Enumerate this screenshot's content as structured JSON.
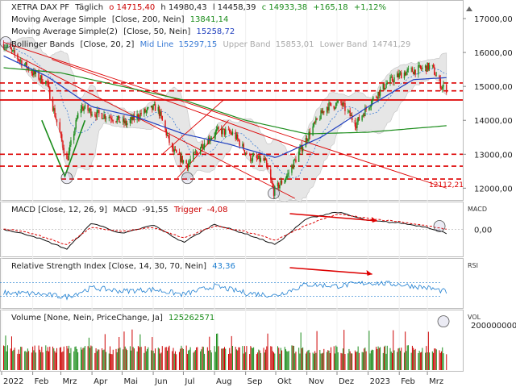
{
  "chart_data": {
    "type": "line",
    "main_panel": {
      "legend": [
        {
          "name": "XETRA DAX PF",
          "extra": "Täglich",
          "o": "o 14715,40",
          "h": "h 14980,43",
          "l": "l 14458,39",
          "c": "c 14933,38",
          "chg": "+165,18",
          "pct": "+1,12%"
        },
        {
          "name": "Moving Average Simple",
          "params": "[Close, 200, Nein]",
          "value": "13841,14",
          "color": "#1a8c1a"
        },
        {
          "name": "Moving Average Simple(2)",
          "params": "[Close, 50, Nein]",
          "value": "15258,72",
          "color": "#1f3fbf"
        },
        {
          "name": "Bollinger Bands",
          "params": "[Close, 20, 2]",
          "mid_label": "Mid Line",
          "mid": "15297,15",
          "upper_label": "Upper Band",
          "upper": "15853,01",
          "lower_label": "Lower Band",
          "lower": "14741,29"
        }
      ],
      "y_ticks": [
        "17000,00",
        "16000,00",
        "15000,00",
        "14000,00",
        "13000,00",
        "12000,00"
      ],
      "y_tick_values": [
        17000,
        16000,
        15000,
        14000,
        13000,
        12000
      ],
      "ylim": [
        11700,
        17500
      ],
      "support_label": "12112,21",
      "resistance_levels": [
        15100,
        14870,
        13000,
        12650
      ],
      "level_line": 14600,
      "support_level": 12270
    },
    "x_ticks": [
      "2022",
      "Feb",
      "Mrz",
      "Apr",
      "Mai",
      "Jun",
      "Jul",
      "Aug",
      "Sep",
      "Okt",
      "Nov",
      "Dez",
      "2023",
      "Feb",
      "Mrz"
    ],
    "price_series": {
      "name": "Close",
      "x": [
        "2022-01-03",
        "2022-01-15",
        "2022-02-01",
        "2022-02-15",
        "2022-03-07",
        "2022-03-20",
        "2022-04-05",
        "2022-04-20",
        "2022-05-05",
        "2022-05-20",
        "2022-06-05",
        "2022-06-20",
        "2022-07-05",
        "2022-07-20",
        "2022-08-05",
        "2022-08-20",
        "2022-09-05",
        "2022-09-20",
        "2022-09-29",
        "2022-10-13",
        "2022-10-25",
        "2022-11-05",
        "2022-11-20",
        "2022-12-05",
        "2022-12-20",
        "2023-01-05",
        "2023-01-20",
        "2023-02-05",
        "2023-02-20",
        "2023-03-05",
        "2023-03-15",
        "2023-03-20"
      ],
      "y": [
        16250,
        15900,
        15400,
        15100,
        12800,
        14400,
        14200,
        14100,
        13900,
        14200,
        14400,
        13100,
        12700,
        13300,
        13700,
        13600,
        12900,
        12800,
        11900,
        12400,
        13100,
        13700,
        14400,
        14500,
        13900,
        14600,
        15100,
        15400,
        15500,
        15600,
        15000,
        14933
      ]
    },
    "ma200_series": {
      "name": "Moving Average Simple",
      "x": [
        "2022-01-03",
        "2022-03-01",
        "2022-05-01",
        "2022-07-01",
        "2022-09-01",
        "2022-11-01",
        "2023-01-01",
        "2023-03-20"
      ],
      "y": [
        15550,
        15400,
        15000,
        14600,
        14000,
        13600,
        13650,
        13841
      ]
    },
    "ma50_series": {
      "name": "Moving Average Simple(2)",
      "x": [
        "2022-01-03",
        "2022-02-15",
        "2022-04-01",
        "2022-05-15",
        "2022-07-01",
        "2022-08-15",
        "2022-10-01",
        "2022-11-15",
        "2023-01-01",
        "2023-02-15",
        "2023-03-20"
      ],
      "y": [
        15900,
        15300,
        14400,
        14100,
        13600,
        13300,
        12900,
        13500,
        14400,
        15200,
        15258
      ]
    },
    "macd_panel": {
      "legend": "MACD [Close, 12, 26, 9]",
      "macd_label": "MACD",
      "macd": "-91,55",
      "trigger_label": "Trigger",
      "trigger": "-4,08",
      "y_label": "MACD",
      "y_tick": "0,00",
      "ylim": [
        -600,
        600
      ],
      "x": [
        "2022-01-03",
        "2022-02-01",
        "2022-03-07",
        "2022-04-01",
        "2022-05-01",
        "2022-06-01",
        "2022-07-01",
        "2022-08-01",
        "2022-09-01",
        "2022-10-01",
        "2022-11-01",
        "2022-12-01",
        "2023-01-01",
        "2023-02-01",
        "2023-03-01",
        "2023-03-20"
      ],
      "macd_values": [
        0,
        -150,
        -450,
        150,
        -100,
        100,
        -300,
        120,
        -100,
        -350,
        250,
        400,
        200,
        150,
        50,
        -91.55
      ],
      "trigger_values": [
        20,
        -100,
        -350,
        50,
        -50,
        50,
        -200,
        80,
        -50,
        -250,
        100,
        350,
        250,
        180,
        80,
        -4.08
      ]
    },
    "rsi_panel": {
      "legend": "Relative Strength Index [Close, 14, 30, 70, Nein]",
      "value": "43,36",
      "y_label": "RSI",
      "levels": [
        30,
        70
      ],
      "x": [
        "2022-01-03",
        "2022-02-01",
        "2022-03-07",
        "2022-04-01",
        "2022-05-01",
        "2022-06-01",
        "2022-07-01",
        "2022-08-01",
        "2022-09-01",
        "2022-10-01",
        "2022-11-01",
        "2022-12-01",
        "2023-01-01",
        "2023-02-01",
        "2023-03-01",
        "2023-03-20"
      ],
      "y": [
        40,
        38,
        28,
        55,
        45,
        50,
        35,
        60,
        40,
        32,
        65,
        60,
        70,
        65,
        55,
        43.36
      ]
    },
    "volume_panel": {
      "legend": "Volume [None, Nein, PriceChange, Ja]",
      "value": "125262571",
      "y_label": "VOL",
      "y_tick": "200000000",
      "y_tick_value": 200000000,
      "ylim": [
        0,
        260000000
      ]
    }
  }
}
